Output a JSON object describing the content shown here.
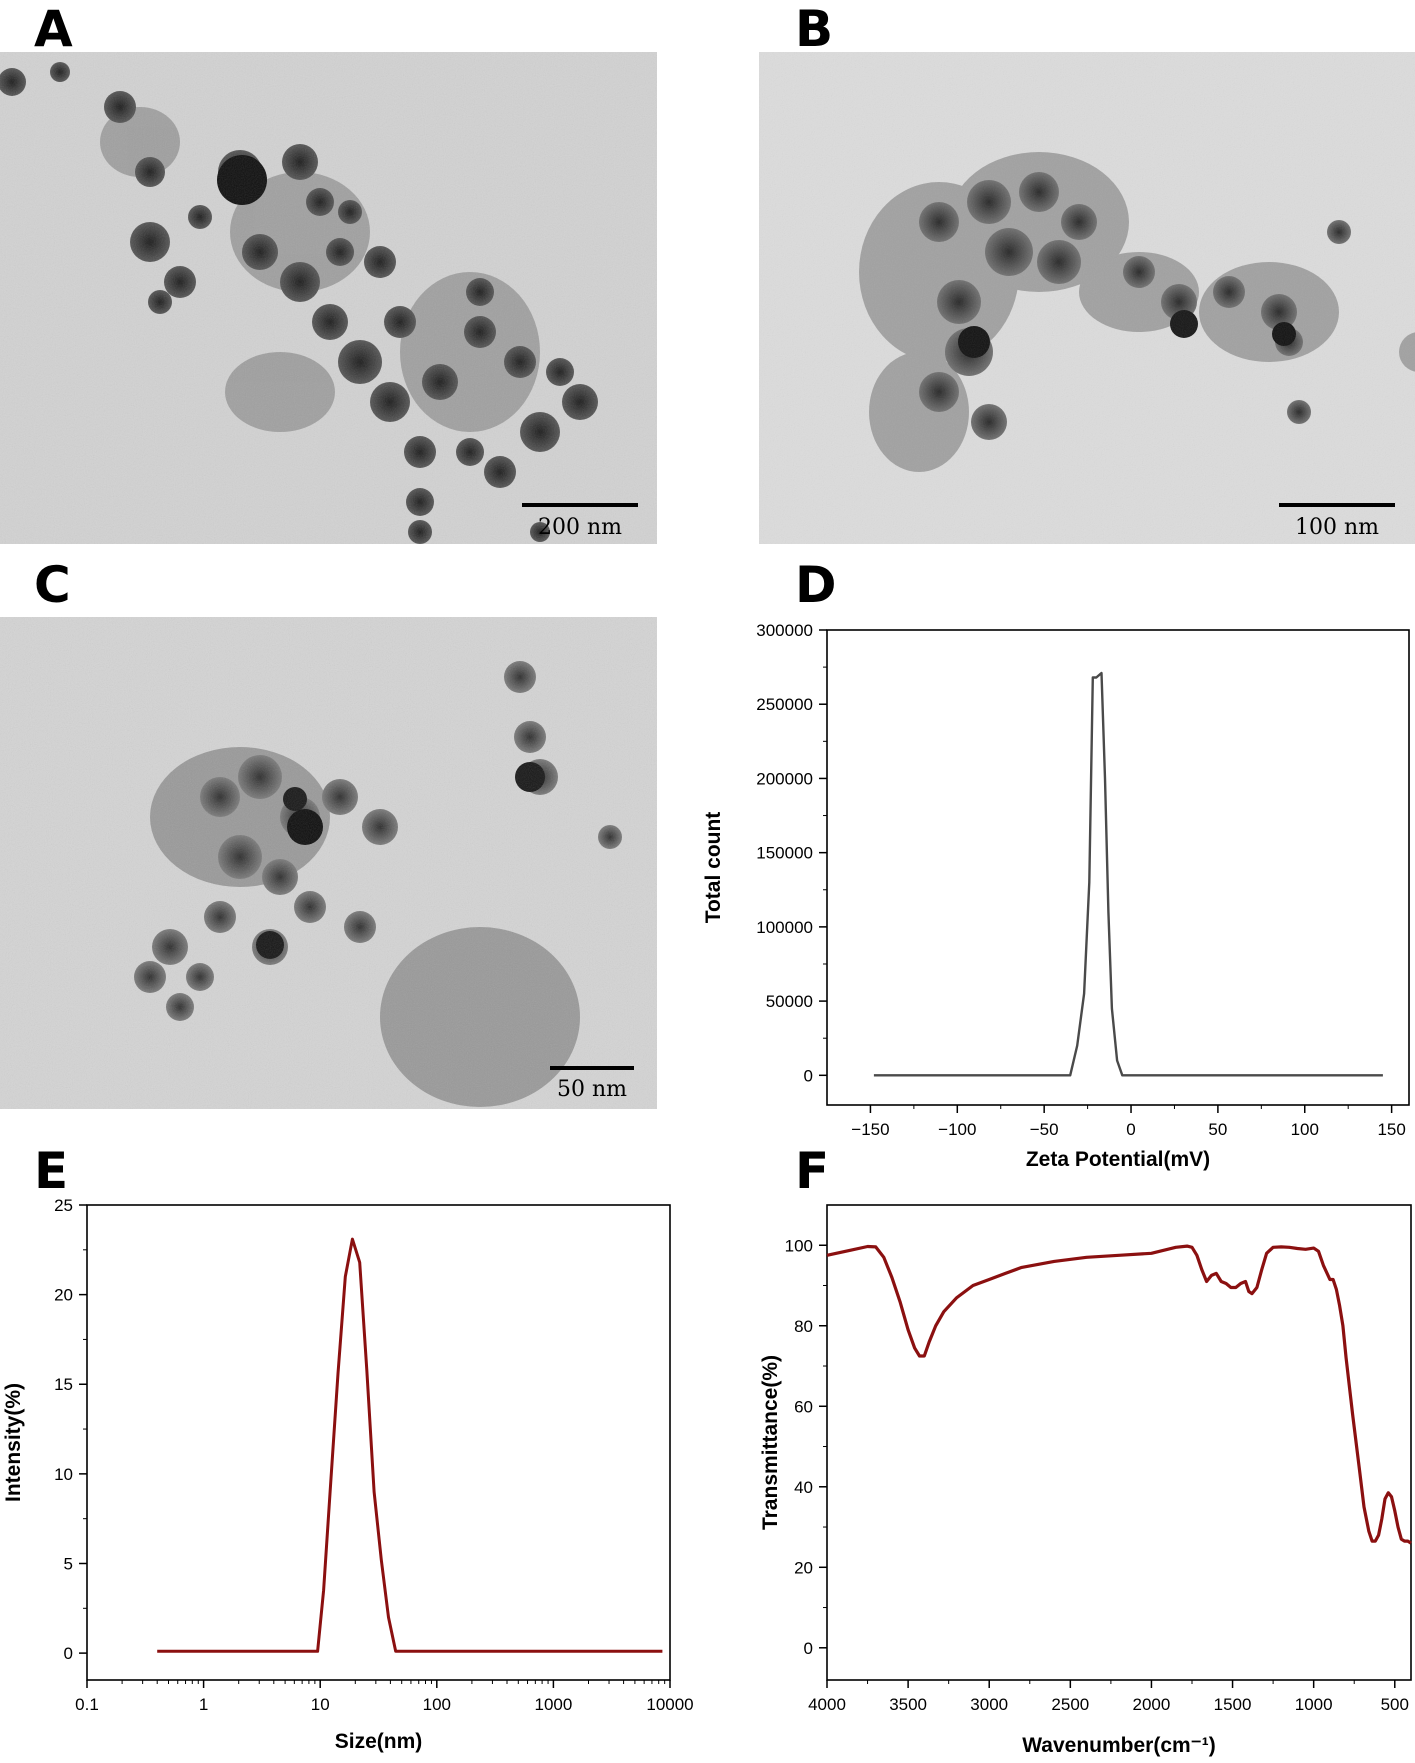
{
  "panels": {
    "A": {
      "label": "A",
      "scale_text": "200 nm"
    },
    "B": {
      "label": "B",
      "scale_text": "100 nm"
    },
    "C": {
      "label": "C",
      "scale_text": "50 nm"
    },
    "D": {
      "label": "D"
    },
    "E": {
      "label": "E"
    },
    "F": {
      "label": "F"
    }
  },
  "colors": {
    "zeta_line": "#4a4a4a",
    "dls_line": "#8b1010",
    "ftir_line": "#8b1010"
  },
  "chart_data": [
    {
      "panel": "D",
      "type": "line",
      "xlabel": "Zeta Potential(mV)",
      "ylabel": "Total count",
      "xlim": [
        -175,
        160
      ],
      "ylim": [
        -20000,
        300000
      ],
      "xticks": [
        -150,
        -100,
        -50,
        0,
        50,
        100,
        150
      ],
      "xtick_labels": [
        "−150",
        "−100",
        "−50",
        "0",
        "50",
        "100",
        "150"
      ],
      "yticks": [
        0,
        50000,
        100000,
        150000,
        200000,
        250000,
        300000
      ],
      "ytick_labels": [
        "0",
        "50000",
        "100000",
        "150000",
        "200000",
        "250000",
        "300000"
      ],
      "series": [
        {
          "x": [
            -148,
            -35,
            -31,
            -27,
            -24,
            -22,
            -20,
            -17,
            -15,
            -13,
            -11,
            -8,
            -5,
            145
          ],
          "y": [
            0,
            0,
            20000,
            55000,
            130000,
            268000,
            268000,
            271000,
            200000,
            110000,
            45000,
            10000,
            0,
            0
          ]
        }
      ]
    },
    {
      "panel": "E",
      "type": "line",
      "xscale": "log",
      "xlabel": "Size(nm)",
      "ylabel": "Intensity(%)",
      "xlim": [
        0.1,
        10000
      ],
      "ylim": [
        -1.5,
        25
      ],
      "xticks": [
        0.1,
        1,
        10,
        100,
        1000,
        10000
      ],
      "xtick_labels": [
        "0.1",
        "1",
        "10",
        "100",
        "1000",
        "10000"
      ],
      "yticks": [
        0,
        5,
        10,
        15,
        20,
        25
      ],
      "ytick_labels": [
        "0",
        "5",
        "10",
        "15",
        "20",
        "25"
      ],
      "series": [
        {
          "x": [
            0.4,
            9.5,
            10.7,
            12.3,
            14.2,
            16.4,
            18.9,
            21.8,
            25.1,
            29.0,
            33.4,
            38.5,
            44.4,
            51.2,
            8600
          ],
          "y": [
            0.1,
            0.1,
            3.5,
            9.5,
            15.6,
            21.0,
            23.1,
            21.8,
            15.8,
            9.0,
            5.2,
            2.0,
            0.1,
            0.1,
            0.1
          ]
        }
      ]
    },
    {
      "panel": "F",
      "type": "line",
      "xlabel": "Wavenumber(cm⁻¹)",
      "ylabel": "Transmittance(%)",
      "xlim": [
        4000,
        400
      ],
      "ylim": [
        -8,
        110
      ],
      "xticks": [
        4000,
        3500,
        3000,
        2500,
        2000,
        1500,
        1000,
        500
      ],
      "xtick_labels": [
        "4000",
        "3500",
        "3000",
        "2500",
        "2000",
        "1500",
        "1000",
        "500"
      ],
      "yticks": [
        0,
        20,
        40,
        60,
        80,
        100
      ],
      "ytick_labels": [
        "0",
        "20",
        "40",
        "60",
        "80",
        "100"
      ],
      "series": [
        {
          "x": [
            4000,
            3850,
            3750,
            3700,
            3650,
            3600,
            3550,
            3500,
            3460,
            3430,
            3400,
            3370,
            3330,
            3280,
            3200,
            3100,
            3000,
            2900,
            2800,
            2600,
            2400,
            2200,
            2000,
            1850,
            1780,
            1750,
            1720,
            1690,
            1660,
            1630,
            1600,
            1570,
            1540,
            1510,
            1480,
            1450,
            1420,
            1400,
            1380,
            1350,
            1320,
            1290,
            1250,
            1200,
            1150,
            1100,
            1050,
            1000,
            970,
            940,
            900,
            880,
            860,
            840,
            820,
            800,
            760,
            720,
            690,
            660,
            640,
            620,
            600,
            580,
            560,
            540,
            520,
            500,
            480,
            460,
            440,
            420,
            400
          ],
          "y": [
            97.5,
            98.8,
            99.7,
            99.6,
            97,
            92,
            86,
            79,
            74.5,
            72.5,
            72.5,
            76,
            80,
            83.5,
            87,
            90,
            91.5,
            93,
            94.5,
            96,
            97,
            97.5,
            98,
            99.5,
            99.8,
            99.5,
            97.5,
            94,
            91,
            92.5,
            93,
            91,
            90.5,
            89.5,
            89.5,
            90.5,
            91,
            88.5,
            88,
            89.5,
            94,
            98,
            99.5,
            99.6,
            99.5,
            99.2,
            99,
            99.3,
            98.5,
            95,
            91.5,
            91.5,
            89,
            85,
            80,
            72,
            58,
            45,
            35,
            29,
            26.5,
            26.5,
            28,
            32,
            37,
            38.5,
            37.5,
            34,
            30,
            27,
            26.5,
            26.5,
            26
          ]
        }
      ]
    }
  ]
}
